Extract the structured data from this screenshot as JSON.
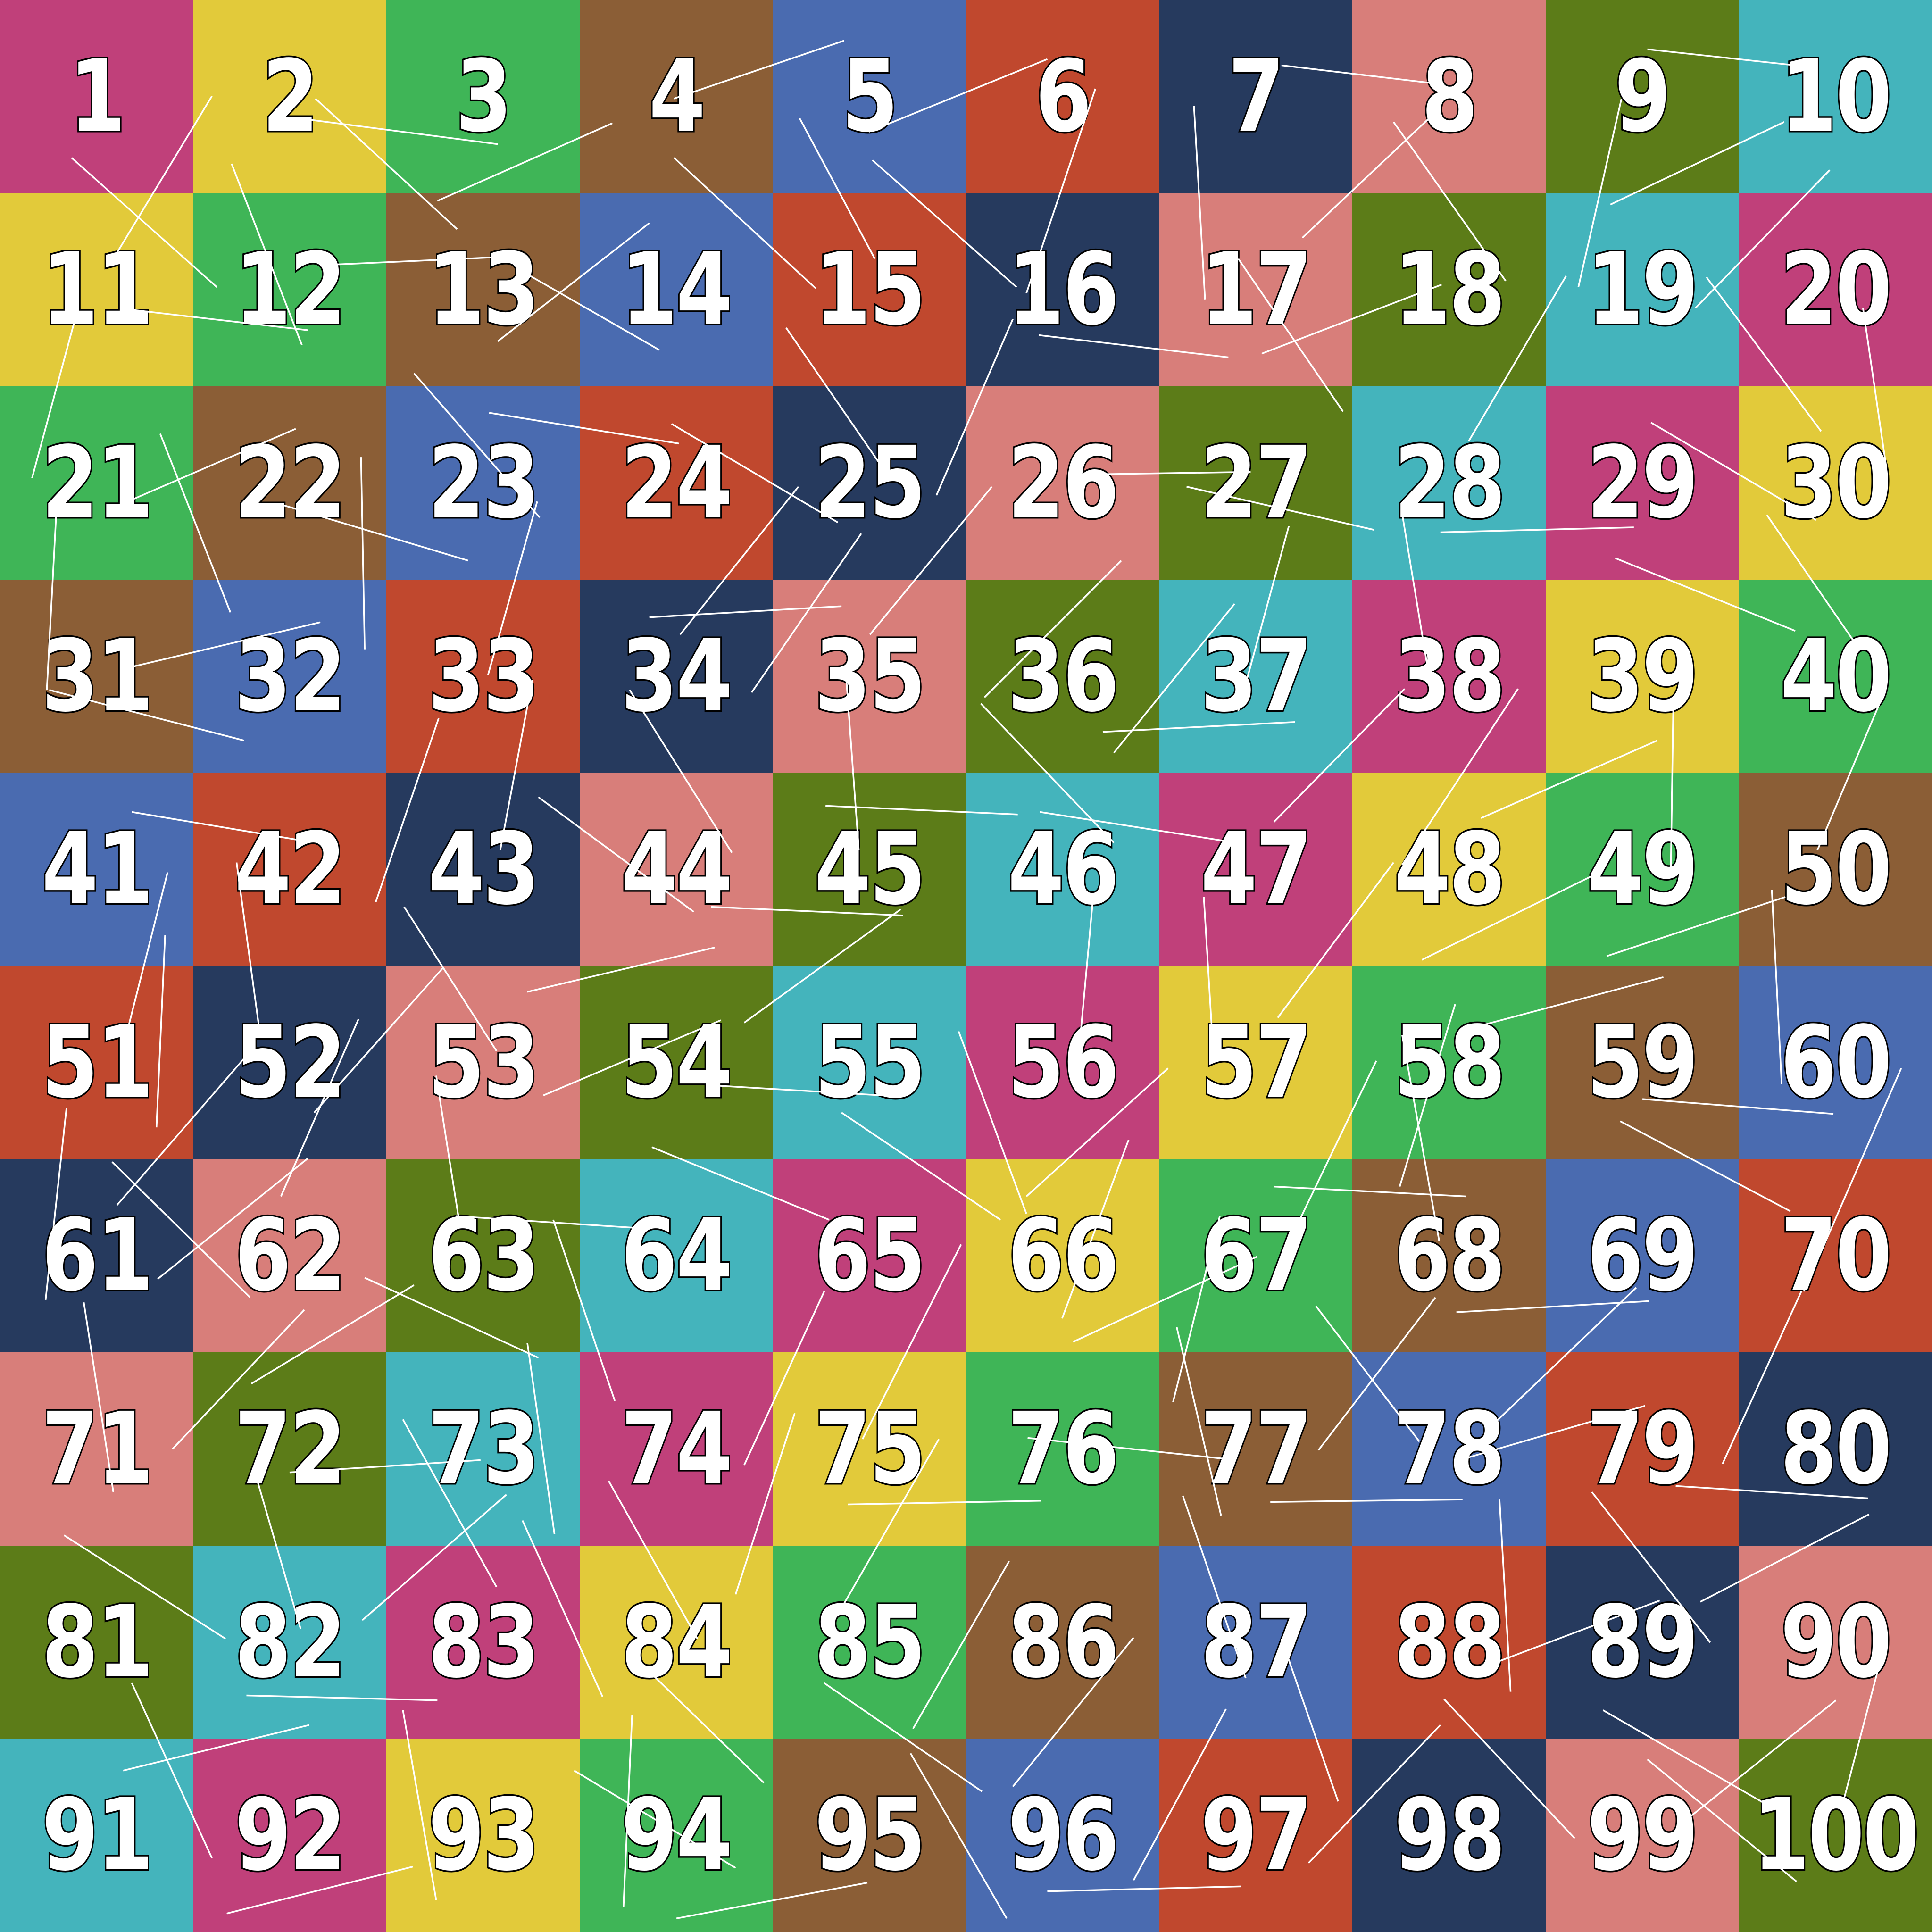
{
  "palette": [
    "#c0407a",
    "#e2ca3a",
    "#3fb557",
    "#8b5e36",
    "#4a6bb0",
    "#c0482e",
    "#263a5e",
    "#d87e7a",
    "#5c7c18",
    "#44b4bc"
  ],
  "color_names": [
    "magenta",
    "yellow",
    "green",
    "brown",
    "blue",
    "red",
    "navy",
    "pink",
    "olive",
    "teal"
  ],
  "cells": [
    1,
    2,
    3,
    4,
    5,
    6,
    7,
    8,
    9,
    10,
    11,
    12,
    13,
    14,
    15,
    16,
    17,
    18,
    19,
    20,
    21,
    22,
    23,
    24,
    25,
    26,
    27,
    28,
    29,
    30,
    31,
    32,
    33,
    34,
    35,
    36,
    37,
    38,
    39,
    40,
    41,
    42,
    43,
    44,
    45,
    46,
    47,
    48,
    49,
    50,
    51,
    52,
    53,
    54,
    55,
    56,
    57,
    58,
    59,
    60,
    61,
    62,
    63,
    64,
    65,
    66,
    67,
    68,
    69,
    70,
    71,
    72,
    73,
    74,
    75,
    76,
    77,
    78,
    79,
    80,
    81,
    82,
    83,
    84,
    85,
    86,
    87,
    88,
    89,
    90,
    91,
    92,
    93,
    94,
    95,
    96,
    97,
    98,
    99,
    100
  ]
}
